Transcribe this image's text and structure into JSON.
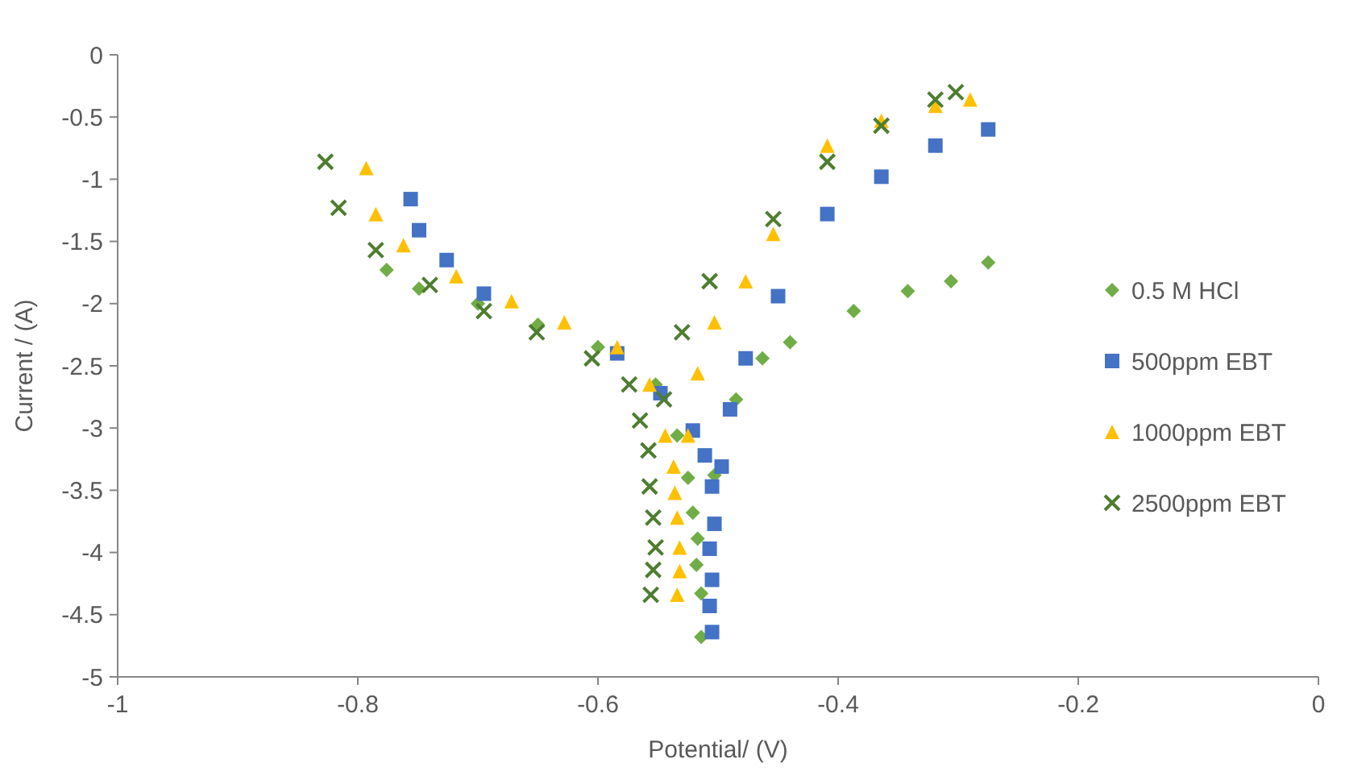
{
  "chart_data": {
    "type": "scatter",
    "xlabel": "Potential/ (V)",
    "ylabel": "Current / (A)",
    "xlim": [
      -1,
      0
    ],
    "ylim": [
      -5,
      0
    ],
    "xticks": [
      -1,
      -0.8,
      -0.6,
      -0.4,
      -0.2,
      0
    ],
    "yticks": [
      -5,
      -4.5,
      -4,
      -3.5,
      -3,
      -2.5,
      -2,
      -1.5,
      -1,
      -0.5,
      0
    ],
    "grid": false,
    "legend": "right",
    "series": [
      {
        "name": "0.5 M HCl",
        "color": "#70ad47",
        "marker": "diamond",
        "x": [
          -0.776,
          -0.749,
          -0.7,
          -0.65,
          -0.6,
          -0.552,
          -0.534,
          -0.525,
          -0.521,
          -0.517,
          -0.518,
          -0.514,
          -0.514,
          -0.503,
          -0.485,
          -0.463,
          -0.44,
          -0.387,
          -0.342,
          -0.306,
          -0.275
        ],
        "values": [
          -1.73,
          -1.88,
          -2.0,
          -2.17,
          -2.35,
          -2.65,
          -3.06,
          -3.4,
          -3.68,
          -3.89,
          -4.1,
          -4.33,
          -4.68,
          -3.38,
          -2.77,
          -2.44,
          -2.31,
          -2.06,
          -1.9,
          -1.82,
          -1.67
        ]
      },
      {
        "name": "500ppm EBT",
        "color": "#4472c4",
        "marker": "square",
        "x": [
          -0.756,
          -0.749,
          -0.726,
          -0.695,
          -0.584,
          -0.548,
          -0.521,
          -0.511,
          -0.505,
          -0.503,
          -0.507,
          -0.505,
          -0.507,
          -0.505,
          -0.497,
          -0.49,
          -0.477,
          -0.45,
          -0.409,
          -0.364,
          -0.319,
          -0.275
        ],
        "values": [
          -1.16,
          -1.41,
          -1.65,
          -1.92,
          -2.4,
          -2.72,
          -3.02,
          -3.22,
          -3.47,
          -3.77,
          -3.97,
          -4.22,
          -4.43,
          -4.64,
          -3.31,
          -2.85,
          -2.44,
          -1.94,
          -1.28,
          -0.98,
          -0.73,
          -0.6
        ]
      },
      {
        "name": "1000ppm EBT",
        "color": "#ffc000",
        "marker": "triangle",
        "x": [
          -0.793,
          -0.785,
          -0.762,
          -0.718,
          -0.672,
          -0.628,
          -0.584,
          -0.557,
          -0.544,
          -0.537,
          -0.536,
          -0.534,
          -0.532,
          -0.532,
          -0.534,
          -0.525,
          -0.517,
          -0.503,
          -0.477,
          -0.454,
          -0.409,
          -0.364,
          -0.319,
          -0.29
        ],
        "values": [
          -0.91,
          -1.28,
          -1.53,
          -1.78,
          -1.98,
          -2.15,
          -2.35,
          -2.65,
          -3.06,
          -3.31,
          -3.52,
          -3.72,
          -3.96,
          -4.15,
          -4.34,
          -3.06,
          -2.56,
          -2.15,
          -1.82,
          -1.44,
          -0.73,
          -0.53,
          -0.41,
          -0.36
        ]
      },
      {
        "name": "2500ppm EBT",
        "color": "#4e7d2f",
        "marker": "cross",
        "x": [
          -0.827,
          -0.816,
          -0.785,
          -0.74,
          -0.695,
          -0.651,
          -0.605,
          -0.574,
          -0.565,
          -0.558,
          -0.557,
          -0.554,
          -0.552,
          -0.554,
          -0.556,
          -0.545,
          -0.53,
          -0.507,
          -0.454,
          -0.409,
          -0.364,
          -0.319,
          -0.302
        ],
        "values": [
          -0.86,
          -1.23,
          -1.57,
          -1.85,
          -2.06,
          -2.23,
          -2.44,
          -2.65,
          -2.94,
          -3.18,
          -3.47,
          -3.72,
          -3.96,
          -4.14,
          -4.34,
          -2.77,
          -2.23,
          -1.82,
          -1.32,
          -0.86,
          -0.57,
          -0.36,
          -0.3
        ]
      }
    ]
  }
}
